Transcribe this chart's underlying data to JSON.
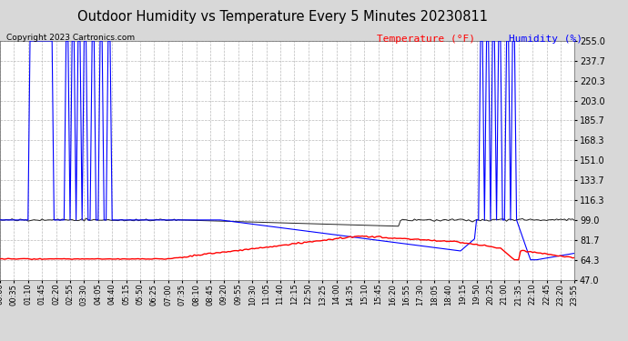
{
  "title": "Outdoor Humidity vs Temperature Every 5 Minutes 20230811",
  "copyright_text": "Copyright 2023 Cartronics.com",
  "legend_temp": "Temperature (°F)",
  "legend_hum": "Humidity (%)",
  "ylim": [
    47.0,
    255.0
  ],
  "yticks": [
    47.0,
    64.3,
    81.7,
    99.0,
    116.3,
    133.7,
    151.0,
    168.3,
    185.7,
    203.0,
    220.3,
    237.7,
    255.0
  ],
  "bg_color": "#d8d8d8",
  "plot_bg_color": "#ffffff",
  "grid_color": "#aaaaaa",
  "temp_color": "red",
  "hum_color": "blue",
  "dark_color": "#222222",
  "n_points": 288,
  "tick_every": 7,
  "figsize": [
    6.9,
    3.75
  ],
  "dpi": 100
}
